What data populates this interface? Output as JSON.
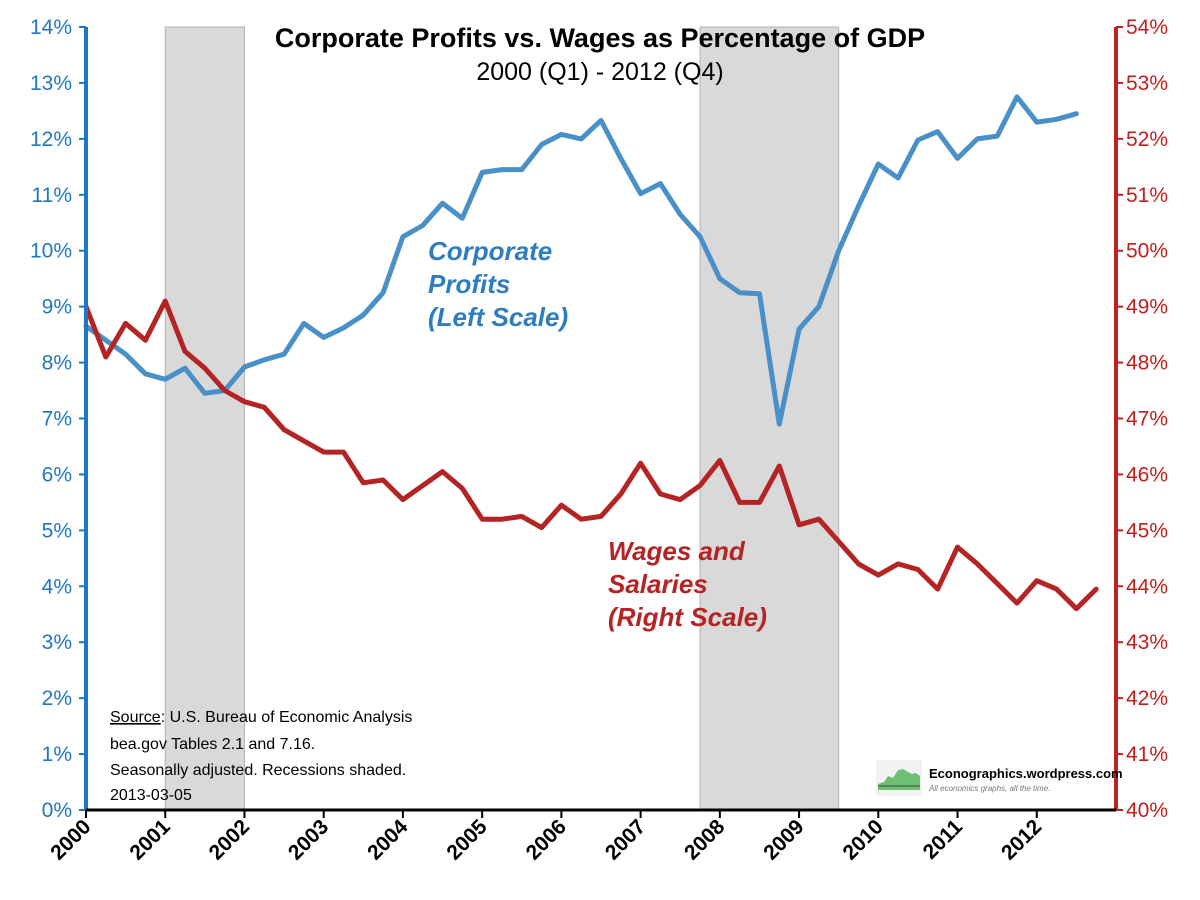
{
  "chart_data": {
    "type": "line",
    "title": "Corporate Profits vs. Wages as Percentage of GDP",
    "subtitle": "2000 (Q1) - 2012 (Q4)",
    "left_axis": {
      "ticks": [
        "0%",
        "1%",
        "2%",
        "3%",
        "4%",
        "5%",
        "6%",
        "7%",
        "8%",
        "9%",
        "10%",
        "11%",
        "12%",
        "13%",
        "14%"
      ],
      "ylim": [
        0,
        14
      ],
      "color": "#1f77c4"
    },
    "right_axis": {
      "ticks": [
        "40%",
        "41%",
        "42%",
        "43%",
        "44%",
        "45%",
        "46%",
        "47%",
        "48%",
        "49%",
        "50%",
        "51%",
        "52%",
        "53%",
        "54%"
      ],
      "ylim": [
        40,
        54
      ],
      "color": "#c0201f"
    },
    "x_ticks": [
      "2000",
      "2001",
      "2002",
      "2003",
      "2004",
      "2005",
      "2006",
      "2007",
      "2008",
      "2009",
      "2010",
      "2011",
      "2012"
    ],
    "xlim": [
      2000,
      2013
    ],
    "recessions": [
      {
        "start": 2001.0,
        "end": 2002.0
      },
      {
        "start": 2007.75,
        "end": 2009.5
      }
    ],
    "series": [
      {
        "key": "profits",
        "axis": "left",
        "color": "#4a90c8",
        "label_lines": [
          "Corporate",
          "Profits",
          "(Left Scale)"
        ],
        "x": [
          2000.0,
          2000.25,
          2000.5,
          2000.75,
          2001.0,
          2001.25,
          2001.5,
          2001.75,
          2002.0,
          2002.25,
          2002.5,
          2002.75,
          2003.0,
          2003.25,
          2003.5,
          2003.75,
          2004.0,
          2004.25,
          2004.5,
          2004.75,
          2005.0,
          2005.25,
          2005.5,
          2005.75,
          2006.0,
          2006.25,
          2006.5,
          2006.75,
          2007.0,
          2007.25,
          2007.5,
          2007.75,
          2008.0,
          2008.25,
          2008.5,
          2008.75,
          2009.0,
          2009.25,
          2009.5,
          2009.75,
          2010.0,
          2010.25,
          2010.5,
          2010.75,
          2011.0,
          2011.25,
          2011.5,
          2011.75,
          2012.0,
          2012.25,
          2012.5,
          2012.75
        ],
        "values": [
          8.65,
          8.4,
          8.15,
          7.8,
          7.7,
          7.9,
          7.45,
          7.5,
          7.92,
          8.05,
          8.15,
          8.7,
          8.45,
          8.62,
          8.85,
          9.25,
          10.25,
          10.45,
          10.85,
          10.58,
          11.4,
          11.45,
          11.45,
          11.9,
          12.08,
          12.0,
          12.33,
          11.65,
          11.02,
          11.2,
          10.65,
          10.25,
          9.5,
          9.25,
          9.23,
          6.9,
          8.6,
          9.0,
          10.0,
          10.8,
          11.55,
          11.3,
          11.98,
          12.13,
          11.65,
          12.0,
          12.05,
          12.75,
          12.3,
          12.35,
          12.45,
          null
        ]
      },
      {
        "key": "wages",
        "axis": "right",
        "color": "#b52424",
        "label_lines": [
          "Wages and",
          "Salaries",
          "(Right Scale)"
        ],
        "x": [
          2000.0,
          2000.25,
          2000.5,
          2000.75,
          2001.0,
          2001.25,
          2001.5,
          2001.75,
          2002.0,
          2002.25,
          2002.5,
          2002.75,
          2003.0,
          2003.25,
          2003.5,
          2003.75,
          2004.0,
          2004.25,
          2004.5,
          2004.75,
          2005.0,
          2005.25,
          2005.5,
          2005.75,
          2006.0,
          2006.25,
          2006.5,
          2006.75,
          2007.0,
          2007.25,
          2007.5,
          2007.75,
          2008.0,
          2008.25,
          2008.5,
          2008.75,
          2009.0,
          2009.25,
          2009.5,
          2009.75,
          2010.0,
          2010.25,
          2010.5,
          2010.75,
          2011.0,
          2011.25,
          2011.5,
          2011.75,
          2012.0,
          2012.25,
          2012.5,
          2012.75
        ],
        "values": [
          49.0,
          48.1,
          48.7,
          48.4,
          49.1,
          48.2,
          47.9,
          47.5,
          47.3,
          47.2,
          46.8,
          46.6,
          46.4,
          46.4,
          45.85,
          45.9,
          45.55,
          45.8,
          46.05,
          45.75,
          45.2,
          45.2,
          45.25,
          45.05,
          45.45,
          45.2,
          45.25,
          45.65,
          46.2,
          45.65,
          45.55,
          45.8,
          46.25,
          45.5,
          45.5,
          46.15,
          45.1,
          45.2,
          44.8,
          44.4,
          44.2,
          44.4,
          44.3,
          43.95,
          44.7,
          44.4,
          44.05,
          43.7,
          44.1,
          43.95,
          43.6,
          43.95
        ]
      }
    ],
    "source_lines": [
      "Source:  U.S. Bureau of Economic Analysis",
      "bea.gov Tables 2.1 and 7.16.",
      "Seasonally adjusted. Recessions shaded.",
      "2013-03-05"
    ],
    "source_underlined": "Source",
    "logo": {
      "text": "Econographics.wordpress.com",
      "tagline": "All economics graphs, all the time."
    },
    "grid": false
  }
}
